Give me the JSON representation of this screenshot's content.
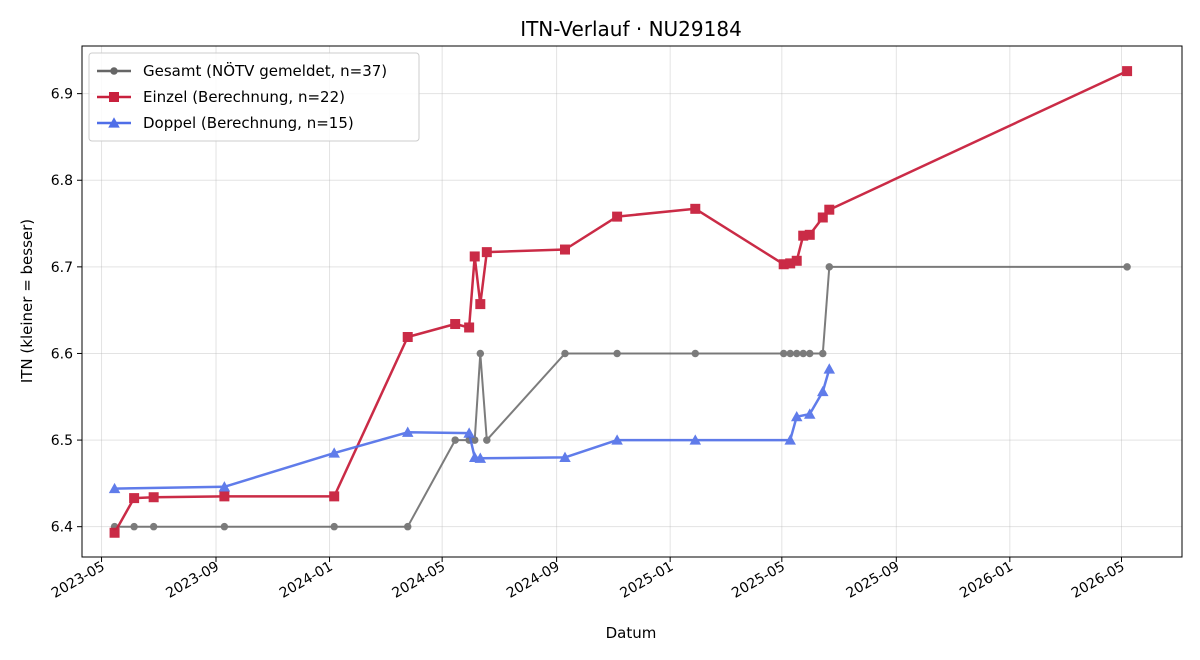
{
  "chart_data": {
    "type": "line",
    "title": "ITN-Verlauf · NU29184",
    "xlabel": "Datum",
    "ylabel": "ITN  (kleiner = besser)",
    "x_ticks": [
      "2023-05",
      "2023-09",
      "2024-01",
      "2024-05",
      "2024-09",
      "2025-01",
      "2025-05",
      "2025-09",
      "2026-01",
      "2026-05"
    ],
    "y_ticks": [
      "6.4",
      "6.5",
      "6.6",
      "6.7",
      "6.8",
      "6.9"
    ],
    "xlim": [
      "2023-04-10",
      "2026-07-05"
    ],
    "ylim": [
      6.365,
      6.955
    ],
    "grid": true,
    "legend_position": "top-left",
    "series": [
      {
        "name": "Gesamt (NÖTV gemeldet, n=37)",
        "color": "#666666",
        "marker": "circle",
        "points": [
          [
            "2023-05-15",
            6.4
          ],
          [
            "2023-06-05",
            6.4
          ],
          [
            "2023-06-26",
            6.4
          ],
          [
            "2023-09-10",
            6.4
          ],
          [
            "2024-01-06",
            6.4
          ],
          [
            "2024-03-25",
            6.4
          ],
          [
            "2024-05-15",
            6.5
          ],
          [
            "2024-05-30",
            6.5
          ],
          [
            "2024-06-05",
            6.5
          ],
          [
            "2024-06-11",
            6.6
          ],
          [
            "2024-06-18",
            6.5
          ],
          [
            "2024-09-10",
            6.6
          ],
          [
            "2024-11-05",
            6.6
          ],
          [
            "2025-01-28",
            6.6
          ],
          [
            "2025-05-03",
            6.6
          ],
          [
            "2025-05-10",
            6.6
          ],
          [
            "2025-05-17",
            6.6
          ],
          [
            "2025-05-24",
            6.6
          ],
          [
            "2025-05-31",
            6.6
          ],
          [
            "2025-06-14",
            6.6
          ],
          [
            "2025-06-21",
            6.7
          ],
          [
            "2026-05-07",
            6.7
          ]
        ]
      },
      {
        "name": "Einzel (Berechnung, n=22)",
        "color": "#c8203d",
        "marker": "square",
        "points": [
          [
            "2023-05-15",
            6.393
          ],
          [
            "2023-06-05",
            6.433
          ],
          [
            "2023-06-26",
            6.434
          ],
          [
            "2023-09-10",
            6.435
          ],
          [
            "2024-01-06",
            6.435
          ],
          [
            "2024-03-25",
            6.619
          ],
          [
            "2024-05-15",
            6.634
          ],
          [
            "2024-05-30",
            6.63
          ],
          [
            "2024-06-05",
            6.712
          ],
          [
            "2024-06-11",
            6.657
          ],
          [
            "2024-06-18",
            6.717
          ],
          [
            "2024-09-10",
            6.72
          ],
          [
            "2024-11-05",
            6.758
          ],
          [
            "2025-01-28",
            6.767
          ],
          [
            "2025-05-03",
            6.703
          ],
          [
            "2025-05-10",
            6.704
          ],
          [
            "2025-05-17",
            6.707
          ],
          [
            "2025-05-24",
            6.736
          ],
          [
            "2025-05-31",
            6.737
          ],
          [
            "2025-06-14",
            6.757
          ],
          [
            "2025-06-21",
            6.766
          ],
          [
            "2026-05-07",
            6.926
          ]
        ]
      },
      {
        "name": "Doppel (Berechnung, n=15)",
        "color": "#4f6ee8",
        "marker": "triangle",
        "points": [
          [
            "2023-05-15",
            6.444
          ],
          [
            "2023-09-10",
            6.446
          ],
          [
            "2024-01-06",
            6.485
          ],
          [
            "2024-03-25",
            6.509
          ],
          [
            "2024-05-30",
            6.508
          ],
          [
            "2024-06-05",
            6.48
          ],
          [
            "2024-06-11",
            6.479
          ],
          [
            "2024-09-10",
            6.48
          ],
          [
            "2024-11-05",
            6.5
          ],
          [
            "2025-01-28",
            6.5
          ],
          [
            "2025-05-10",
            6.5
          ],
          [
            "2025-05-17",
            6.527
          ],
          [
            "2025-05-31",
            6.53
          ],
          [
            "2025-06-14",
            6.556
          ],
          [
            "2025-06-21",
            6.582
          ]
        ]
      }
    ]
  }
}
